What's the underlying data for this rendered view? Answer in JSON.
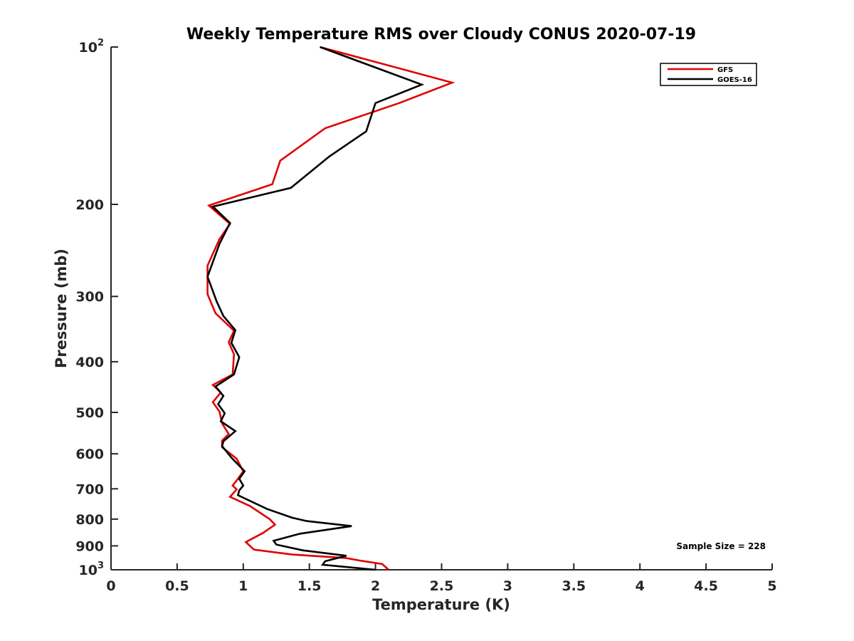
{
  "chart_data": {
    "type": "line",
    "title": "Weekly Temperature RMS over Cloudy CONUS 2020-07-19",
    "xlabel": "Temperature (K)",
    "ylabel": "Pressure (mb)",
    "xlim": [
      0,
      5
    ],
    "ylim": [
      100,
      1000
    ],
    "y_scale": "log",
    "y_reversed": true,
    "grid": false,
    "legend_position": "top-right",
    "x_ticks": [
      "0",
      "0.5",
      "1",
      "1.5",
      "2",
      "2.5",
      "3",
      "3.5",
      "4",
      "4.5",
      "5"
    ],
    "y_ticks": [
      {
        "value": 100,
        "base": "10",
        "exp": "2"
      },
      {
        "value": 200,
        "label": "200"
      },
      {
        "value": 300,
        "label": "300"
      },
      {
        "value": 400,
        "label": "400"
      },
      {
        "value": 500,
        "label": "500"
      },
      {
        "value": 600,
        "label": "600"
      },
      {
        "value": 700,
        "label": "700"
      },
      {
        "value": 800,
        "label": "800"
      },
      {
        "value": 900,
        "label": "900"
      },
      {
        "value": 1000,
        "base": "10",
        "exp": "3"
      }
    ],
    "annotation": "Sample Size = 228",
    "series": [
      {
        "name": "GFS",
        "color": "#e00000",
        "points": [
          [
            1.58,
            100
          ],
          [
            2.58,
            117
          ],
          [
            2.18,
            128
          ],
          [
            1.62,
            143
          ],
          [
            1.28,
            165
          ],
          [
            1.22,
            183
          ],
          [
            0.74,
            201
          ],
          [
            0.9,
            218
          ],
          [
            0.82,
            233
          ],
          [
            0.73,
            262
          ],
          [
            0.73,
            297
          ],
          [
            0.79,
            323
          ],
          [
            0.93,
            349
          ],
          [
            0.89,
            367
          ],
          [
            0.93,
            387
          ],
          [
            0.92,
            423
          ],
          [
            0.77,
            443
          ],
          [
            0.83,
            458
          ],
          [
            0.77,
            478
          ],
          [
            0.82,
            498
          ],
          [
            0.84,
            525
          ],
          [
            0.89,
            550
          ],
          [
            0.84,
            566
          ],
          [
            0.84,
            583
          ],
          [
            0.95,
            613
          ],
          [
            1.0,
            648
          ],
          [
            0.95,
            675
          ],
          [
            0.92,
            690
          ],
          [
            0.95,
            702
          ],
          [
            0.9,
            725
          ],
          [
            1.05,
            755
          ],
          [
            1.2,
            800
          ],
          [
            1.24,
            820
          ],
          [
            1.15,
            850
          ],
          [
            1.02,
            885
          ],
          [
            1.08,
            915
          ],
          [
            1.37,
            935
          ],
          [
            1.78,
            950
          ],
          [
            1.88,
            960
          ],
          [
            2.05,
            975
          ],
          [
            2.1,
            1000
          ]
        ]
      },
      {
        "name": "GOES-16",
        "color": "#000000",
        "points": [
          [
            1.58,
            100
          ],
          [
            2.35,
            118
          ],
          [
            2.0,
            128
          ],
          [
            1.93,
            145
          ],
          [
            1.65,
            162
          ],
          [
            1.36,
            186
          ],
          [
            0.77,
            202
          ],
          [
            0.9,
            217
          ],
          [
            0.82,
            238
          ],
          [
            0.73,
            275
          ],
          [
            0.8,
            307
          ],
          [
            0.85,
            327
          ],
          [
            0.94,
            348
          ],
          [
            0.91,
            368
          ],
          [
            0.97,
            392
          ],
          [
            0.93,
            423
          ],
          [
            0.79,
            446
          ],
          [
            0.85,
            465
          ],
          [
            0.81,
            482
          ],
          [
            0.86,
            502
          ],
          [
            0.83,
            520
          ],
          [
            0.94,
            543
          ],
          [
            0.85,
            568
          ],
          [
            0.84,
            580
          ],
          [
            0.91,
            610
          ],
          [
            1.01,
            648
          ],
          [
            0.97,
            670
          ],
          [
            1.0,
            690
          ],
          [
            0.97,
            705
          ],
          [
            0.96,
            720
          ],
          [
            1.18,
            765
          ],
          [
            1.37,
            795
          ],
          [
            1.48,
            807
          ],
          [
            1.82,
            825
          ],
          [
            1.43,
            853
          ],
          [
            1.23,
            880
          ],
          [
            1.25,
            895
          ],
          [
            1.45,
            918
          ],
          [
            1.78,
            940
          ],
          [
            1.62,
            963
          ],
          [
            1.6,
            978
          ],
          [
            2.0,
            1000
          ]
        ]
      }
    ]
  }
}
